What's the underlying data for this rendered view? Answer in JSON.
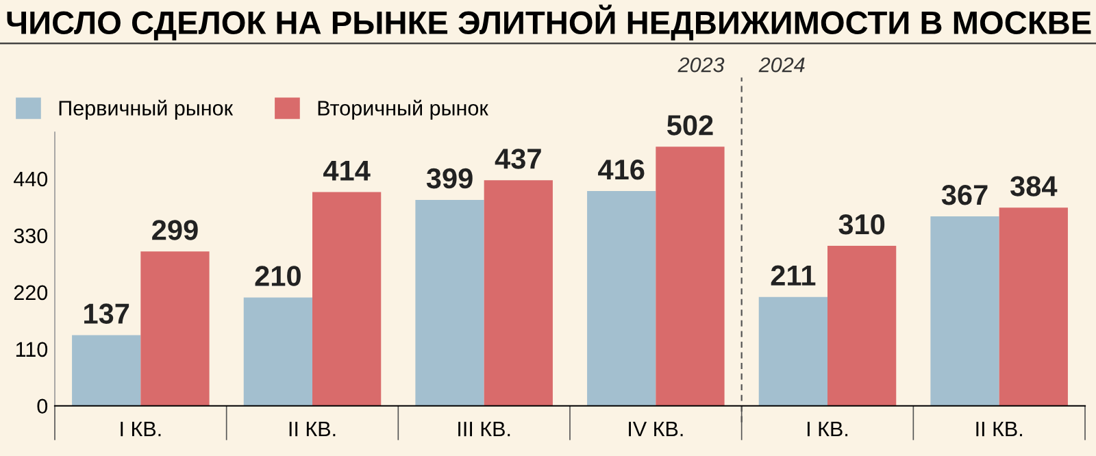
{
  "chart_data": {
    "type": "bar",
    "title": "ЧИСЛО СДЕЛОК НА РЫНКЕ ЭЛИТНОЙ НЕДВИЖИМОСТИ В МОСКВЕ",
    "categories": [
      "I КВ.",
      "II КВ.",
      "III КВ.",
      "IV КВ.",
      "I КВ.",
      "II КВ."
    ],
    "series": [
      {
        "name": "Первичный рынок",
        "color": "#a3bfcf",
        "values": [
          137,
          210,
          399,
          416,
          211,
          367
        ]
      },
      {
        "name": "Вторичный рынок",
        "color": "#d96b6b",
        "values": [
          299,
          414,
          437,
          502,
          310,
          384
        ]
      }
    ],
    "ylim": [
      0,
      530
    ],
    "yticks": [
      0,
      110,
      220,
      330,
      440
    ],
    "annotations": [
      "2023",
      "2024"
    ],
    "data_labels": true,
    "legend": "top left",
    "grid": false
  }
}
